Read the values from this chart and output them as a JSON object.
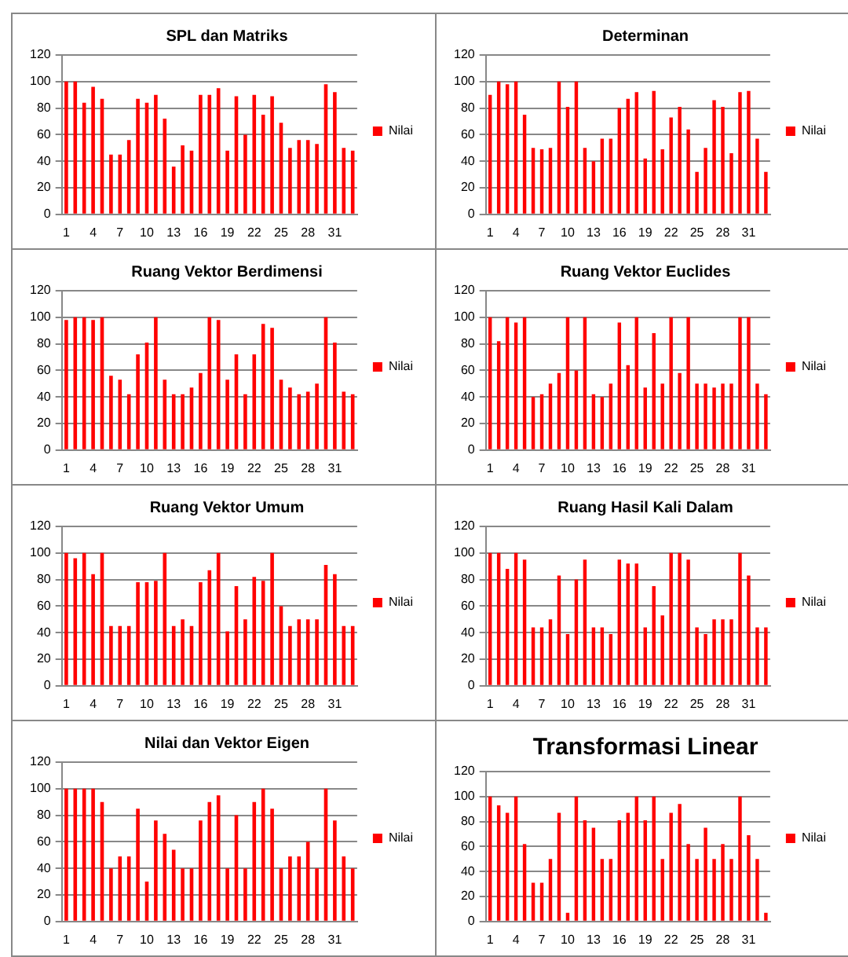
{
  "chart_data": [
    {
      "type": "bar",
      "title": "SPL dan Matriks",
      "categories": [
        "1",
        null,
        null,
        "4",
        null,
        null,
        "7",
        null,
        null,
        "10",
        null,
        null,
        "13",
        null,
        null,
        "16",
        null,
        null,
        "19",
        null,
        null,
        "22",
        null,
        null,
        "25",
        null,
        null,
        "28",
        null,
        null,
        "31",
        null,
        null
      ],
      "series": [
        {
          "name": "Nilai",
          "color": "#ff0000",
          "values": [
            100,
            100,
            84,
            96,
            87,
            45,
            45,
            56,
            87,
            84,
            90,
            72,
            36,
            52,
            48,
            90,
            90,
            95,
            48,
            89,
            60,
            90,
            75,
            89,
            69,
            50,
            56,
            56,
            53,
            98,
            92,
            50,
            48
          ]
        }
      ],
      "ylim": [
        0,
        120
      ],
      "yticks": [
        0,
        20,
        40,
        60,
        80,
        100,
        120
      ],
      "grid": "y",
      "legend": "right"
    },
    {
      "type": "bar",
      "title": "Determinan",
      "categories": [
        "1",
        null,
        null,
        "4",
        null,
        null,
        "7",
        null,
        null,
        "10",
        null,
        null,
        "13",
        null,
        null,
        "16",
        null,
        null,
        "19",
        null,
        null,
        "22",
        null,
        null,
        "25",
        null,
        null,
        "28",
        null,
        null,
        "31",
        null,
        null
      ],
      "series": [
        {
          "name": "Nilai",
          "color": "#ff0000",
          "values": [
            90,
            100,
            98,
            100,
            75,
            50,
            49,
            50,
            100,
            81,
            100,
            50,
            40,
            57,
            57,
            80,
            87,
            92,
            42,
            93,
            49,
            73,
            81,
            64,
            32,
            50,
            86,
            81,
            46,
            92,
            93,
            57,
            32
          ]
        }
      ],
      "ylim": [
        0,
        120
      ],
      "yticks": [
        0,
        20,
        40,
        60,
        80,
        100,
        120
      ],
      "grid": "y",
      "legend": "right"
    },
    {
      "type": "bar",
      "title": "Ruang Vektor Berdimensi",
      "categories": [
        "1",
        null,
        null,
        "4",
        null,
        null,
        "7",
        null,
        null,
        "10",
        null,
        null,
        "13",
        null,
        null,
        "16",
        null,
        null,
        "19",
        null,
        null,
        "22",
        null,
        null,
        "25",
        null,
        null,
        "28",
        null,
        null,
        "31",
        null,
        null
      ],
      "series": [
        {
          "name": "Nilai",
          "color": "#ff0000",
          "values": [
            98,
            100,
            100,
            98,
            100,
            56,
            53,
            42,
            72,
            81,
            100,
            53,
            42,
            42,
            47,
            58,
            100,
            98,
            53,
            72,
            42,
            72,
            95,
            92,
            53,
            47,
            42,
            44,
            50,
            100,
            81,
            44,
            42
          ]
        }
      ],
      "ylim": [
        0,
        120
      ],
      "yticks": [
        0,
        20,
        40,
        60,
        80,
        100,
        120
      ],
      "grid": "y",
      "legend": "right"
    },
    {
      "type": "bar",
      "title": "Ruang Vektor Euclides",
      "categories": [
        "1",
        null,
        null,
        "4",
        null,
        null,
        "7",
        null,
        null,
        "10",
        null,
        null,
        "13",
        null,
        null,
        "16",
        null,
        null,
        "19",
        null,
        null,
        "22",
        null,
        null,
        "25",
        null,
        null,
        "28",
        null,
        null,
        "31",
        null,
        null
      ],
      "series": [
        {
          "name": "Nilai",
          "color": "#ff0000",
          "values": [
            100,
            82,
            100,
            96,
            100,
            40,
            42,
            50,
            58,
            100,
            60,
            100,
            42,
            40,
            50,
            96,
            64,
            100,
            47,
            88,
            50,
            100,
            58,
            100,
            50,
            50,
            47,
            50,
            50,
            100,
            100,
            50,
            42
          ]
        }
      ],
      "ylim": [
        0,
        120
      ],
      "yticks": [
        0,
        20,
        40,
        60,
        80,
        100,
        120
      ],
      "grid": "y",
      "legend": "right"
    },
    {
      "type": "bar",
      "title": "Ruang Vektor Umum",
      "categories": [
        "1",
        null,
        null,
        "4",
        null,
        null,
        "7",
        null,
        null,
        "10",
        null,
        null,
        "13",
        null,
        null,
        "16",
        null,
        null,
        "19",
        null,
        null,
        "22",
        null,
        null,
        "25",
        null,
        null,
        "28",
        null,
        null,
        "31",
        null,
        null
      ],
      "series": [
        {
          "name": "Nilai",
          "color": "#ff0000",
          "values": [
            100,
            96,
            100,
            84,
            100,
            45,
            45,
            45,
            78,
            78,
            79,
            100,
            45,
            50,
            45,
            78,
            87,
            100,
            41,
            75,
            50,
            82,
            79,
            100,
            60,
            45,
            50,
            50,
            50,
            91,
            84,
            45,
            45
          ]
        }
      ],
      "ylim": [
        0,
        120
      ],
      "yticks": [
        0,
        20,
        40,
        60,
        80,
        100,
        120
      ],
      "grid": "y",
      "legend": "right"
    },
    {
      "type": "bar",
      "title": "Ruang Hasil Kali Dalam",
      "categories": [
        "1",
        null,
        null,
        "4",
        null,
        null,
        "7",
        null,
        null,
        "10",
        null,
        null,
        "13",
        null,
        null,
        "16",
        null,
        null,
        "19",
        null,
        null,
        "22",
        null,
        null,
        "25",
        null,
        null,
        "28",
        null,
        null,
        "31",
        null,
        null
      ],
      "series": [
        {
          "name": "Nilai",
          "color": "#ff0000",
          "values": [
            100,
            100,
            88,
            100,
            95,
            44,
            44,
            50,
            83,
            39,
            80,
            95,
            44,
            44,
            39,
            95,
            92,
            92,
            44,
            75,
            53,
            100,
            100,
            95,
            44,
            39,
            50,
            50,
            50,
            100,
            83,
            44,
            44
          ]
        }
      ],
      "ylim": [
        0,
        120
      ],
      "yticks": [
        0,
        20,
        40,
        60,
        80,
        100,
        120
      ],
      "grid": "y",
      "legend": "right"
    },
    {
      "type": "bar",
      "title": "Nilai dan Vektor Eigen",
      "categories": [
        "1",
        null,
        null,
        "4",
        null,
        null,
        "7",
        null,
        null,
        "10",
        null,
        null,
        "13",
        null,
        null,
        "16",
        null,
        null,
        "19",
        null,
        null,
        "22",
        null,
        null,
        "25",
        null,
        null,
        "28",
        null,
        null,
        "31",
        null,
        null
      ],
      "series": [
        {
          "name": "Nilai",
          "color": "#ff0000",
          "values": [
            100,
            100,
            100,
            100,
            90,
            40,
            49,
            49,
            85,
            30,
            76,
            66,
            54,
            40,
            40,
            76,
            90,
            95,
            40,
            80,
            40,
            90,
            100,
            85,
            40,
            49,
            49,
            60,
            40,
            100,
            76,
            49,
            40
          ]
        }
      ],
      "ylim": [
        0,
        120
      ],
      "yticks": [
        0,
        20,
        40,
        60,
        80,
        100,
        120
      ],
      "grid": "y",
      "legend": "right"
    },
    {
      "type": "bar",
      "title": "Transformasi Linear",
      "categories": [
        "1",
        null,
        null,
        "4",
        null,
        null,
        "7",
        null,
        null,
        "10",
        null,
        null,
        "13",
        null,
        null,
        "16",
        null,
        null,
        "19",
        null,
        null,
        "22",
        null,
        null,
        "25",
        null,
        null,
        "28",
        null,
        null,
        "31",
        null,
        null
      ],
      "series": [
        {
          "name": "Nilai",
          "color": "#ff0000",
          "values": [
            100,
            93,
            87,
            100,
            62,
            31,
            31,
            50,
            87,
            7,
            100,
            81,
            75,
            50,
            50,
            81,
            87,
            100,
            81,
            100,
            50,
            87,
            94,
            62,
            50,
            75,
            50,
            62,
            50,
            100,
            69,
            50,
            7
          ]
        }
      ],
      "ylim": [
        0,
        120
      ],
      "yticks": [
        0,
        20,
        40,
        60,
        80,
        100,
        120
      ],
      "grid": "y",
      "legend": "right"
    }
  ]
}
